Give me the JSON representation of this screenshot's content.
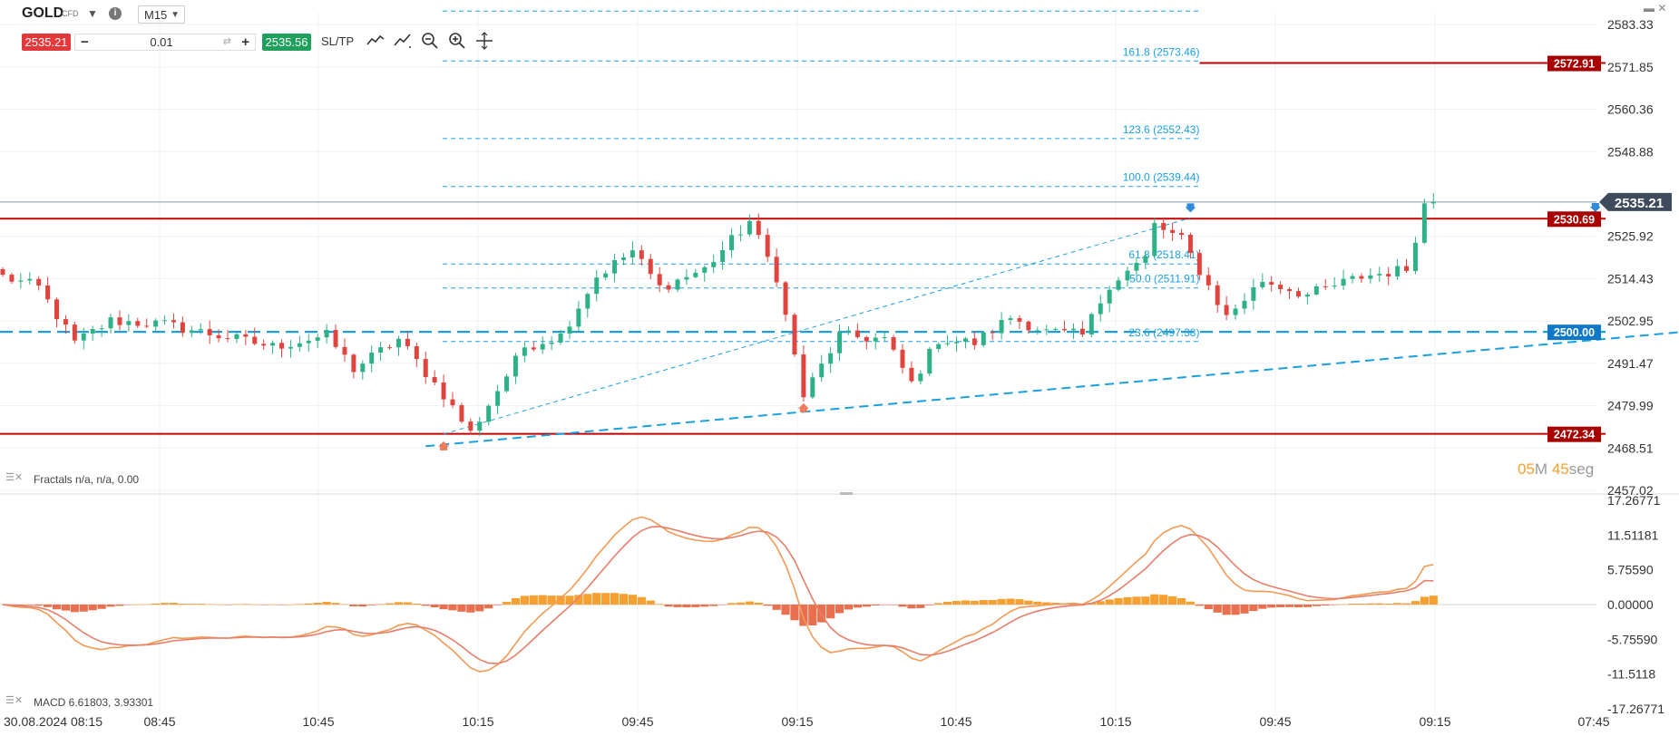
{
  "toolbar": {
    "symbol": "GOLD",
    "symbol_type": "CFD",
    "timeframe": "M15",
    "sell_price": "2535.21",
    "buy_price": "2535.56",
    "volume": "0.01",
    "sltp_label": "SL/TP",
    "minus": "−",
    "plus": "+",
    "tools": [
      "line-chart-icon",
      "drawing-tool-icon",
      "zoom-out-icon",
      "zoom-in-icon",
      "crosshair-icon"
    ]
  },
  "countdown": {
    "minutes": "05",
    "min_unit": "M",
    "seconds": "45",
    "sec_unit": "seg"
  },
  "colors": {
    "bull": "#2eb088",
    "bear": "#e0443e",
    "resistance": "#c00000",
    "fib": "#1aa0e0",
    "macd_hist_pos": "#f5a030",
    "macd_hist_neg": "#e8704e",
    "macd_line": "#f29a55",
    "signal_line": "#e87e6a"
  },
  "chart_data": [
    {
      "type": "candlestick",
      "instrument": "GOLD",
      "timeframe": "M15",
      "ylim": [
        2457.02,
        2590
      ],
      "price_ticks": [
        "2583.33",
        "2571.85",
        "2560.36",
        "2548.88",
        "2525.92",
        "2514.43",
        "2502.95",
        "2491.47",
        "2479.99",
        "2468.51",
        "2457.02"
      ],
      "time_ticks": [
        "30.08.2024 08:15",
        "08:45",
        "10:45",
        "10:15",
        "09:45",
        "09:15",
        "10:45",
        "10:15",
        "09:45",
        "09:15",
        "07:45"
      ],
      "current_price": 2535.21,
      "current_price_label": "2535.21",
      "horizontal_levels": [
        {
          "price": 2572.91,
          "label": "2572.91",
          "color": "resistance",
          "style": "solid"
        },
        {
          "price": 2530.69,
          "label": "2530.69",
          "color": "resistance",
          "style": "solid"
        },
        {
          "price": 2500.0,
          "label": "2500.00",
          "color": "fib",
          "style": "dashed"
        },
        {
          "price": 2472.34,
          "label": "2472.34",
          "color": "resistance",
          "style": "solid"
        }
      ],
      "fibonacci": [
        {
          "ratio": "161.8",
          "price": 2573.46,
          "label": "161.8 (2573.46)"
        },
        {
          "ratio": "123.6",
          "price": 2552.43,
          "label": "123.6 (2552.43)"
        },
        {
          "ratio": "100.0",
          "price": 2539.44,
          "label": "100.0 (2539.44)"
        },
        {
          "ratio": "61.8",
          "price": 2518.41,
          "label": "61.8 (2518.41)"
        },
        {
          "ratio": "50.0",
          "price": 2511.91,
          "label": "50.0 (2511.91)"
        },
        {
          "ratio": "23.6",
          "price": 2497.38,
          "label": "23.6 (2497.38)"
        }
      ],
      "fib_top_price": 2587.0,
      "trendlines": [
        {
          "from": [
            0,
            2472.3
          ],
          "to": [
            83,
            2530.9
          ],
          "style": "thin-dashed"
        },
        {
          "from": [
            -2,
            2469.0
          ],
          "to": [
            149,
            2502.5
          ],
          "style": "dashed"
        }
      ],
      "fractals_up": [
        {
          "i": 83,
          "price": 2530.9
        },
        {
          "i": 128,
          "price": 2531.0
        }
      ],
      "fractals_down": [
        {
          "i": 0,
          "price": 2472.3
        },
        {
          "i": 40,
          "price": 2482.6
        }
      ],
      "indicator_label": "Fractals n/a, n/a, 0.00"
    },
    {
      "type": "macd",
      "label": "MACD 6.61803, 3.93301",
      "ylim": [
        -17.26771,
        17.26771
      ],
      "ticks": [
        "17.26771",
        "11.51181",
        "5.75590",
        "0.00000",
        "-5.75590",
        "-11.5118",
        "-17.26771"
      ],
      "last_macd": 6.61803,
      "last_signal": 3.93301
    }
  ]
}
